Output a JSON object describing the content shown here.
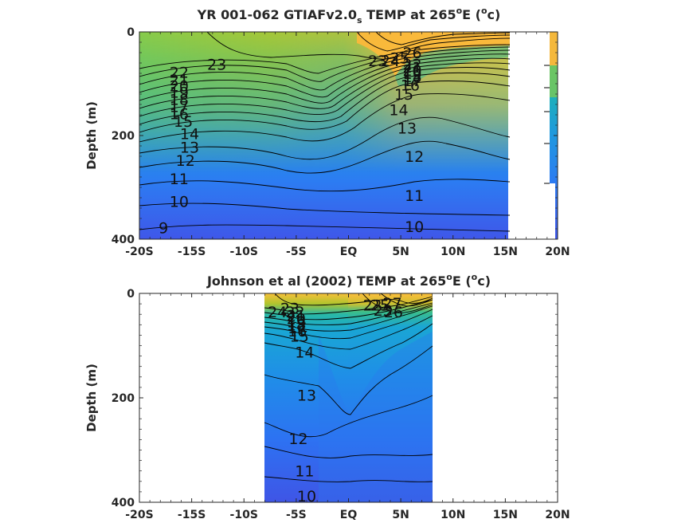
{
  "chart_data": [
    {
      "type": "contour",
      "title_main": "YR 001-062 GTIAFv2.0",
      "title_sub": "s",
      "title_rest": " TEMP at 265",
      "title_deg": "o",
      "title_unit_open": "E (",
      "title_unit_deg": "o",
      "title_unit_close": "c)",
      "ylabel": "Depth (m)",
      "x_ticks": [
        "-20S",
        "-15S",
        "-10S",
        "-5S",
        "EQ",
        "5N",
        "10N",
        "15N",
        "20N"
      ],
      "x_values": [
        -20,
        -15,
        -10,
        -5,
        0,
        5,
        10,
        15,
        20
      ],
      "y_ticks": [
        "0",
        "200",
        "400"
      ],
      "y_values": [
        0,
        200,
        400
      ],
      "xlim": [
        -20,
        20
      ],
      "ylim": [
        0,
        400
      ],
      "data_xrange": [
        -20,
        20
      ],
      "gap_xrange": [
        15.2,
        17.8
      ],
      "levels": [
        9,
        10,
        11,
        12,
        13,
        14,
        15,
        16,
        17,
        18,
        19,
        20,
        21,
        22,
        23,
        24,
        25,
        26
      ],
      "contour_labels": [
        {
          "text": "23",
          "lat": -12.6,
          "depth": 62
        },
        {
          "text": "22",
          "lat": -16.2,
          "depth": 78
        },
        {
          "text": "21",
          "lat": -16.2,
          "depth": 92
        },
        {
          "text": "20",
          "lat": -16.2,
          "depth": 104
        },
        {
          "text": "19",
          "lat": -16.2,
          "depth": 116
        },
        {
          "text": "18",
          "lat": -16.2,
          "depth": 130
        },
        {
          "text": "17",
          "lat": -16.2,
          "depth": 144
        },
        {
          "text": "16",
          "lat": -16.2,
          "depth": 158
        },
        {
          "text": "15",
          "lat": -15.8,
          "depth": 172
        },
        {
          "text": "14",
          "lat": -15.2,
          "depth": 196
        },
        {
          "text": "13",
          "lat": -15.2,
          "depth": 222
        },
        {
          "text": "12",
          "lat": -15.6,
          "depth": 248
        },
        {
          "text": "11",
          "lat": -16.2,
          "depth": 283
        },
        {
          "text": "10",
          "lat": -16.2,
          "depth": 327
        },
        {
          "text": "9",
          "lat": -17.7,
          "depth": 378
        },
        {
          "text": "26",
          "lat": 6.1,
          "depth": 40
        },
        {
          "text": "25",
          "lat": 4.9,
          "depth": 50
        },
        {
          "text": "24",
          "lat": 4.0,
          "depth": 55
        },
        {
          "text": "23",
          "lat": 2.8,
          "depth": 55
        },
        {
          "text": "22",
          "lat": 6.1,
          "depth": 62
        },
        {
          "text": "21",
          "lat": 6.1,
          "depth": 68
        },
        {
          "text": "20",
          "lat": 6.1,
          "depth": 74
        },
        {
          "text": "19",
          "lat": 6.1,
          "depth": 80
        },
        {
          "text": "18",
          "lat": 6.1,
          "depth": 86
        },
        {
          "text": "17",
          "lat": 6.1,
          "depth": 94
        },
        {
          "text": "16",
          "lat": 5.9,
          "depth": 102
        },
        {
          "text": "15",
          "lat": 5.3,
          "depth": 120
        },
        {
          "text": "14",
          "lat": 4.8,
          "depth": 150
        },
        {
          "text": "13",
          "lat": 5.6,
          "depth": 185
        },
        {
          "text": "12",
          "lat": 6.3,
          "depth": 240
        },
        {
          "text": "11",
          "lat": 6.3,
          "depth": 315
        },
        {
          "text": "10",
          "lat": 6.3,
          "depth": 375
        }
      ]
    },
    {
      "type": "contour",
      "title_main": "Johnson et al (2002) TEMP at 265",
      "title_deg": "o",
      "title_unit_open": "E (",
      "title_unit_deg": "o",
      "title_unit_close": "c)",
      "ylabel": "Depth (m)",
      "x_ticks": [
        "-20S",
        "-15S",
        "-10S",
        "-5S",
        "EQ",
        "5N",
        "10N",
        "15N",
        "20N"
      ],
      "x_values": [
        -20,
        -15,
        -10,
        -5,
        0,
        5,
        10,
        15,
        20
      ],
      "y_ticks": [
        "0",
        "200",
        "400"
      ],
      "y_values": [
        0,
        200,
        400
      ],
      "xlim": [
        -20,
        20
      ],
      "ylim": [
        0,
        400
      ],
      "data_xrange": [
        -8,
        8
      ],
      "levels": [
        10,
        11,
        12,
        13,
        14,
        15,
        16,
        17,
        18,
        19,
        20,
        21,
        22,
        23,
        24,
        25,
        26,
        27
      ],
      "contour_labels": [
        {
          "text": "24",
          "lat": -6.8,
          "depth": 35
        },
        {
          "text": "23",
          "lat": -5.6,
          "depth": 28
        },
        {
          "text": "22",
          "lat": -5.1,
          "depth": 35
        },
        {
          "text": "21",
          "lat": -5.0,
          "depth": 42
        },
        {
          "text": "20",
          "lat": -5.0,
          "depth": 48
        },
        {
          "text": "19",
          "lat": -5.0,
          "depth": 54
        },
        {
          "text": "18",
          "lat": -5.0,
          "depth": 60
        },
        {
          "text": "17",
          "lat": -4.9,
          "depth": 66
        },
        {
          "text": "16",
          "lat": -4.9,
          "depth": 72
        },
        {
          "text": "15",
          "lat": -4.7,
          "depth": 82
        },
        {
          "text": "14",
          "lat": -4.2,
          "depth": 112
        },
        {
          "text": "13",
          "lat": -4.0,
          "depth": 195
        },
        {
          "text": "12",
          "lat": -4.8,
          "depth": 278
        },
        {
          "text": "11",
          "lat": -4.2,
          "depth": 340
        },
        {
          "text": "10",
          "lat": -4.0,
          "depth": 388
        },
        {
          "text": "22",
          "lat": 2.3,
          "depth": 22
        },
        {
          "text": "25",
          "lat": 3.0,
          "depth": 22
        },
        {
          "text": "27",
          "lat": 4.2,
          "depth": 18
        },
        {
          "text": "23",
          "lat": 3.3,
          "depth": 32
        },
        {
          "text": "26",
          "lat": 4.3,
          "depth": 35
        }
      ]
    }
  ]
}
